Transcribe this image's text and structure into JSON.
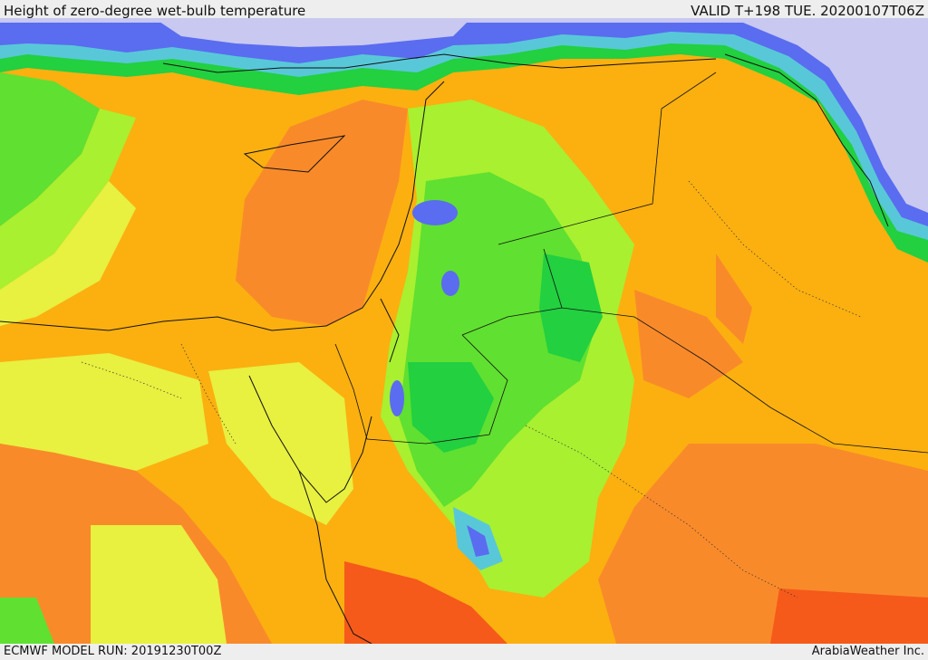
{
  "header": {
    "title": "Height of zero-degree wet-bulb temperature",
    "valid": "VALID T+198 TUE. 20200107T06Z"
  },
  "footer": {
    "model_run": "ECMWF MODEL RUN: 20191230T00Z",
    "credit": "ArabiaWeather Inc."
  },
  "map": {
    "field": "zero-degree wet-bulb height",
    "palette": {
      "sea_low": "#c8c8f0",
      "blue": "#5a6cf0",
      "cyan": "#58c8d8",
      "green_dark": "#22d040",
      "green": "#60e030",
      "lime": "#a8f030",
      "yellow": "#e8f040",
      "orange_light": "#fbb010",
      "orange": "#f98a2a",
      "red_orange": "#f55a1a"
    }
  }
}
